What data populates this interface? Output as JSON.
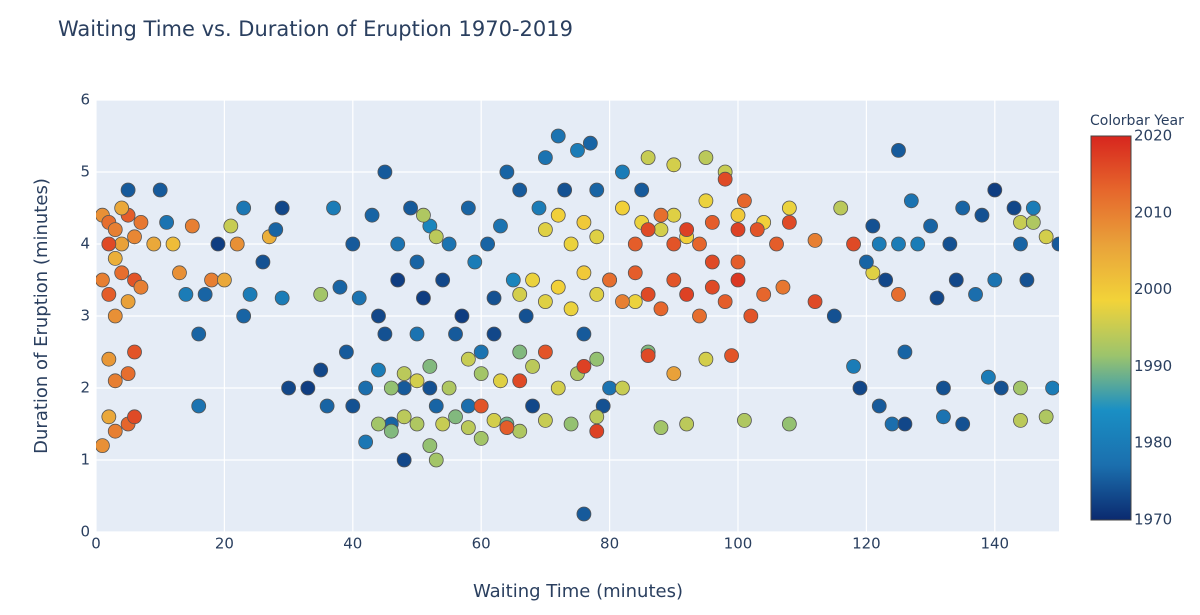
{
  "chart_data": {
    "type": "scatter",
    "title": "Waiting Time vs. Duration of Eruption 1970-2019",
    "x_label": "Waiting Time (minutes)",
    "y_label": "Duration of Eruption (minutes)",
    "colorbar_title": "Colorbar Year",
    "xlim": [
      0,
      150
    ],
    "xticks": [
      0,
      20,
      40,
      60,
      80,
      100,
      120,
      140
    ],
    "ylim": [
      0,
      6
    ],
    "yticks": [
      0,
      1,
      2,
      3,
      4,
      5,
      6
    ],
    "clim": [
      1970,
      2020
    ],
    "cticks": [
      1970,
      1980,
      1990,
      2000,
      2010,
      2020
    ],
    "colorscale": [
      "#0b2a6f",
      "#1b6fae",
      "#1a8fc4",
      "#9cc46c",
      "#f2d339",
      "#e9a33a",
      "#e6672c",
      "#d7261e"
    ],
    "grid": true,
    "points": [
      {
        "x": 1,
        "y": 4.4,
        "year": 2008
      },
      {
        "x": 2,
        "y": 4.3,
        "year": 2012
      },
      {
        "x": 3,
        "y": 4.2,
        "year": 2010
      },
      {
        "x": 4,
        "y": 4.0,
        "year": 2006
      },
      {
        "x": 5,
        "y": 4.4,
        "year": 2014
      },
      {
        "x": 6,
        "y": 4.1,
        "year": 2009
      },
      {
        "x": 7,
        "y": 4.3,
        "year": 2011
      },
      {
        "x": 2,
        "y": 4.0,
        "year": 2016
      },
      {
        "x": 4,
        "y": 4.5,
        "year": 2005
      },
      {
        "x": 1,
        "y": 3.5,
        "year": 2010
      },
      {
        "x": 2,
        "y": 3.3,
        "year": 2014
      },
      {
        "x": 3,
        "y": 3.0,
        "year": 2008
      },
      {
        "x": 4,
        "y": 3.6,
        "year": 2012
      },
      {
        "x": 5,
        "y": 3.2,
        "year": 2006
      },
      {
        "x": 6,
        "y": 3.5,
        "year": 2015
      },
      {
        "x": 7,
        "y": 3.4,
        "year": 2010
      },
      {
        "x": 3,
        "y": 3.8,
        "year": 2004
      },
      {
        "x": 2,
        "y": 2.4,
        "year": 2007
      },
      {
        "x": 3,
        "y": 2.1,
        "year": 2010
      },
      {
        "x": 5,
        "y": 2.2,
        "year": 2012
      },
      {
        "x": 6,
        "y": 2.5,
        "year": 2015
      },
      {
        "x": 2,
        "y": 1.6,
        "year": 2005
      },
      {
        "x": 3,
        "y": 1.4,
        "year": 2010
      },
      {
        "x": 5,
        "y": 1.5,
        "year": 2013
      },
      {
        "x": 6,
        "y": 1.6,
        "year": 2016
      },
      {
        "x": 1,
        "y": 1.2,
        "year": 2008
      },
      {
        "x": 5,
        "y": 4.75,
        "year": 1975
      },
      {
        "x": 10,
        "y": 4.75,
        "year": 1975
      },
      {
        "x": 9,
        "y": 4.0,
        "year": 2005
      },
      {
        "x": 11,
        "y": 4.3,
        "year": 1978
      },
      {
        "x": 12,
        "y": 4.0,
        "year": 2002
      },
      {
        "x": 13,
        "y": 3.6,
        "year": 2008
      },
      {
        "x": 14,
        "y": 3.3,
        "year": 1980
      },
      {
        "x": 15,
        "y": 4.25,
        "year": 2010
      },
      {
        "x": 16,
        "y": 2.75,
        "year": 1976
      },
      {
        "x": 16,
        "y": 1.75,
        "year": 1978
      },
      {
        "x": 17,
        "y": 3.3,
        "year": 1976
      },
      {
        "x": 18,
        "y": 3.5,
        "year": 2010
      },
      {
        "x": 19,
        "y": 4.0,
        "year": 1972
      },
      {
        "x": 20,
        "y": 3.5,
        "year": 2005
      },
      {
        "x": 21,
        "y": 4.25,
        "year": 1995
      },
      {
        "x": 22,
        "y": 4.0,
        "year": 2008
      },
      {
        "x": 23,
        "y": 4.5,
        "year": 1979
      },
      {
        "x": 23,
        "y": 3.0,
        "year": 1976
      },
      {
        "x": 24,
        "y": 3.3,
        "year": 1980
      },
      {
        "x": 26,
        "y": 3.75,
        "year": 1974
      },
      {
        "x": 27,
        "y": 4.1,
        "year": 2004
      },
      {
        "x": 28,
        "y": 4.2,
        "year": 1976
      },
      {
        "x": 29,
        "y": 4.5,
        "year": 1973
      },
      {
        "x": 29,
        "y": 3.25,
        "year": 1980
      },
      {
        "x": 30,
        "y": 2.0,
        "year": 1973
      },
      {
        "x": 33,
        "y": 2.0,
        "year": 1972
      },
      {
        "x": 35,
        "y": 2.25,
        "year": 1973
      },
      {
        "x": 36,
        "y": 1.75,
        "year": 1976
      },
      {
        "x": 37,
        "y": 4.5,
        "year": 1980
      },
      {
        "x": 38,
        "y": 3.4,
        "year": 1976
      },
      {
        "x": 39,
        "y": 2.5,
        "year": 1975
      },
      {
        "x": 40,
        "y": 4.0,
        "year": 1975
      },
      {
        "x": 40,
        "y": 1.75,
        "year": 1974
      },
      {
        "x": 41,
        "y": 3.25,
        "year": 1978
      },
      {
        "x": 42,
        "y": 2.0,
        "year": 1977
      },
      {
        "x": 42,
        "y": 1.25,
        "year": 1979
      },
      {
        "x": 43,
        "y": 4.4,
        "year": 1976
      },
      {
        "x": 44,
        "y": 3.0,
        "year": 1973
      },
      {
        "x": 44,
        "y": 2.25,
        "year": 1980
      },
      {
        "x": 45,
        "y": 5.0,
        "year": 1975
      },
      {
        "x": 45,
        "y": 2.75,
        "year": 1974
      },
      {
        "x": 46,
        "y": 1.5,
        "year": 1976
      },
      {
        "x": 47,
        "y": 3.5,
        "year": 1972
      },
      {
        "x": 47,
        "y": 4.0,
        "year": 1978
      },
      {
        "x": 48,
        "y": 2.0,
        "year": 1975
      },
      {
        "x": 48,
        "y": 1.0,
        "year": 1973
      },
      {
        "x": 49,
        "y": 4.5,
        "year": 1975
      },
      {
        "x": 50,
        "y": 3.75,
        "year": 1976
      },
      {
        "x": 50,
        "y": 2.75,
        "year": 1978
      },
      {
        "x": 51,
        "y": 3.25,
        "year": 1972
      },
      {
        "x": 52,
        "y": 4.25,
        "year": 1982
      },
      {
        "x": 52,
        "y": 2.0,
        "year": 1974
      },
      {
        "x": 53,
        "y": 1.75,
        "year": 1976
      },
      {
        "x": 54,
        "y": 3.5,
        "year": 1973
      },
      {
        "x": 55,
        "y": 4.0,
        "year": 1978
      },
      {
        "x": 56,
        "y": 2.75,
        "year": 1975
      },
      {
        "x": 57,
        "y": 3.0,
        "year": 1972
      },
      {
        "x": 58,
        "y": 4.5,
        "year": 1976
      },
      {
        "x": 58,
        "y": 1.75,
        "year": 1977
      },
      {
        "x": 59,
        "y": 3.75,
        "year": 1980
      },
      {
        "x": 60,
        "y": 2.5,
        "year": 1978
      },
      {
        "x": 61,
        "y": 4.0,
        "year": 1976
      },
      {
        "x": 62,
        "y": 3.25,
        "year": 1974
      },
      {
        "x": 62,
        "y": 2.75,
        "year": 1973
      },
      {
        "x": 63,
        "y": 4.25,
        "year": 1978
      },
      {
        "x": 64,
        "y": 5.0,
        "year": 1976
      },
      {
        "x": 65,
        "y": 3.5,
        "year": 1982
      },
      {
        "x": 66,
        "y": 4.75,
        "year": 1975
      },
      {
        "x": 67,
        "y": 3.0,
        "year": 1974
      },
      {
        "x": 68,
        "y": 1.75,
        "year": 1973
      },
      {
        "x": 69,
        "y": 4.5,
        "year": 1980
      },
      {
        "x": 70,
        "y": 5.2,
        "year": 1978
      },
      {
        "x": 72,
        "y": 5.5,
        "year": 1978
      },
      {
        "x": 73,
        "y": 4.75,
        "year": 1974
      },
      {
        "x": 75,
        "y": 5.3,
        "year": 1980
      },
      {
        "x": 76,
        "y": 2.75,
        "year": 1975
      },
      {
        "x": 77,
        "y": 5.4,
        "year": 1976
      },
      {
        "x": 78,
        "y": 4.75,
        "year": 1976
      },
      {
        "x": 80,
        "y": 2.0,
        "year": 1978
      },
      {
        "x": 79,
        "y": 1.75,
        "year": 1974
      },
      {
        "x": 76,
        "y": 0.25,
        "year": 1975
      },
      {
        "x": 82,
        "y": 5.0,
        "year": 1980
      },
      {
        "x": 85,
        "y": 4.75,
        "year": 1975
      },
      {
        "x": 44,
        "y": 1.5,
        "year": 1992
      },
      {
        "x": 46,
        "y": 1.4,
        "year": 1990
      },
      {
        "x": 48,
        "y": 1.6,
        "year": 1994
      },
      {
        "x": 50,
        "y": 1.5,
        "year": 1993
      },
      {
        "x": 52,
        "y": 1.2,
        "year": 1991
      },
      {
        "x": 53,
        "y": 1.0,
        "year": 1992
      },
      {
        "x": 54,
        "y": 1.5,
        "year": 1995
      },
      {
        "x": 56,
        "y": 1.6,
        "year": 1990
      },
      {
        "x": 58,
        "y": 1.45,
        "year": 1994
      },
      {
        "x": 60,
        "y": 1.3,
        "year": 1992
      },
      {
        "x": 62,
        "y": 1.55,
        "year": 1996
      },
      {
        "x": 64,
        "y": 1.5,
        "year": 1989
      },
      {
        "x": 66,
        "y": 1.4,
        "year": 1993
      },
      {
        "x": 70,
        "y": 1.55,
        "year": 1995
      },
      {
        "x": 74,
        "y": 1.5,
        "year": 1991
      },
      {
        "x": 78,
        "y": 1.6,
        "year": 1994
      },
      {
        "x": 46,
        "y": 2.0,
        "year": 1991
      },
      {
        "x": 48,
        "y": 2.2,
        "year": 1994
      },
      {
        "x": 50,
        "y": 2.1,
        "year": 1996
      },
      {
        "x": 52,
        "y": 2.3,
        "year": 1990
      },
      {
        "x": 55,
        "y": 2.0,
        "year": 1993
      },
      {
        "x": 58,
        "y": 2.4,
        "year": 1995
      },
      {
        "x": 60,
        "y": 2.2,
        "year": 1992
      },
      {
        "x": 63,
        "y": 2.1,
        "year": 1997
      },
      {
        "x": 66,
        "y": 2.5,
        "year": 1990
      },
      {
        "x": 68,
        "y": 2.3,
        "year": 1994
      },
      {
        "x": 72,
        "y": 2.0,
        "year": 1996
      },
      {
        "x": 75,
        "y": 2.2,
        "year": 1993
      },
      {
        "x": 78,
        "y": 2.4,
        "year": 1991
      },
      {
        "x": 82,
        "y": 2.0,
        "year": 1995
      },
      {
        "x": 86,
        "y": 2.5,
        "year": 1990
      },
      {
        "x": 88,
        "y": 1.45,
        "year": 1992
      },
      {
        "x": 92,
        "y": 1.5,
        "year": 1994
      },
      {
        "x": 95,
        "y": 2.4,
        "year": 1996
      },
      {
        "x": 101,
        "y": 1.55,
        "year": 1993
      },
      {
        "x": 108,
        "y": 1.5,
        "year": 1991
      },
      {
        "x": 35,
        "y": 3.3,
        "year": 1992
      },
      {
        "x": 51,
        "y": 4.4,
        "year": 1993
      },
      {
        "x": 53,
        "y": 4.1,
        "year": 1994
      },
      {
        "x": 66,
        "y": 3.3,
        "year": 1996
      },
      {
        "x": 68,
        "y": 3.5,
        "year": 1998
      },
      {
        "x": 70,
        "y": 3.2,
        "year": 1997
      },
      {
        "x": 72,
        "y": 3.4,
        "year": 1999
      },
      {
        "x": 74,
        "y": 3.1,
        "year": 1998
      },
      {
        "x": 76,
        "y": 3.6,
        "year": 2000
      },
      {
        "x": 78,
        "y": 3.3,
        "year": 1997
      },
      {
        "x": 80,
        "y": 3.5,
        "year": 1999
      },
      {
        "x": 84,
        "y": 3.2,
        "year": 1998
      },
      {
        "x": 70,
        "y": 4.2,
        "year": 1997
      },
      {
        "x": 72,
        "y": 4.4,
        "year": 1999
      },
      {
        "x": 74,
        "y": 4.0,
        "year": 1998
      },
      {
        "x": 76,
        "y": 4.3,
        "year": 2000
      },
      {
        "x": 78,
        "y": 4.1,
        "year": 1997
      },
      {
        "x": 82,
        "y": 4.5,
        "year": 1999
      },
      {
        "x": 85,
        "y": 4.3,
        "year": 1998
      },
      {
        "x": 88,
        "y": 4.2,
        "year": 1996
      },
      {
        "x": 90,
        "y": 4.4,
        "year": 1997
      },
      {
        "x": 92,
        "y": 4.1,
        "year": 1999
      },
      {
        "x": 95,
        "y": 4.6,
        "year": 1998
      },
      {
        "x": 86,
        "y": 5.2,
        "year": 1995
      },
      {
        "x": 90,
        "y": 5.1,
        "year": 1996
      },
      {
        "x": 95,
        "y": 5.2,
        "year": 1994
      },
      {
        "x": 98,
        "y": 5.0,
        "year": 1995
      },
      {
        "x": 100,
        "y": 4.4,
        "year": 2000
      },
      {
        "x": 104,
        "y": 4.3,
        "year": 1999
      },
      {
        "x": 108,
        "y": 4.5,
        "year": 1998
      },
      {
        "x": 116,
        "y": 4.5,
        "year": 1994
      },
      {
        "x": 121,
        "y": 3.6,
        "year": 1997
      },
      {
        "x": 144,
        "y": 4.3,
        "year": 1995
      },
      {
        "x": 146,
        "y": 4.3,
        "year": 1993
      },
      {
        "x": 148,
        "y": 4.1,
        "year": 1996
      },
      {
        "x": 144,
        "y": 2.0,
        "year": 1992
      },
      {
        "x": 148,
        "y": 1.6,
        "year": 1993
      },
      {
        "x": 144,
        "y": 1.55,
        "year": 1994
      },
      {
        "x": 80,
        "y": 3.5,
        "year": 2012
      },
      {
        "x": 82,
        "y": 3.2,
        "year": 2010
      },
      {
        "x": 84,
        "y": 3.6,
        "year": 2014
      },
      {
        "x": 86,
        "y": 3.3,
        "year": 2016
      },
      {
        "x": 88,
        "y": 3.1,
        "year": 2013
      },
      {
        "x": 90,
        "y": 3.5,
        "year": 2015
      },
      {
        "x": 92,
        "y": 3.3,
        "year": 2017
      },
      {
        "x": 94,
        "y": 3.0,
        "year": 2012
      },
      {
        "x": 96,
        "y": 3.4,
        "year": 2016
      },
      {
        "x": 98,
        "y": 3.2,
        "year": 2014
      },
      {
        "x": 100,
        "y": 3.5,
        "year": 2018
      },
      {
        "x": 102,
        "y": 3.0,
        "year": 2015
      },
      {
        "x": 104,
        "y": 3.3,
        "year": 2013
      },
      {
        "x": 107,
        "y": 3.4,
        "year": 2011
      },
      {
        "x": 112,
        "y": 3.2,
        "year": 2016
      },
      {
        "x": 84,
        "y": 4.0,
        "year": 2014
      },
      {
        "x": 86,
        "y": 4.2,
        "year": 2016
      },
      {
        "x": 88,
        "y": 4.4,
        "year": 2012
      },
      {
        "x": 90,
        "y": 4.0,
        "year": 2015
      },
      {
        "x": 92,
        "y": 4.2,
        "year": 2017
      },
      {
        "x": 94,
        "y": 4.0,
        "year": 2013
      },
      {
        "x": 96,
        "y": 4.3,
        "year": 2014
      },
      {
        "x": 98,
        "y": 4.9,
        "year": 2016
      },
      {
        "x": 100,
        "y": 4.2,
        "year": 2017
      },
      {
        "x": 101,
        "y": 4.6,
        "year": 2013
      },
      {
        "x": 103,
        "y": 4.2,
        "year": 2015
      },
      {
        "x": 106,
        "y": 4.0,
        "year": 2014
      },
      {
        "x": 108,
        "y": 4.3,
        "year": 2016
      },
      {
        "x": 112,
        "y": 4.05,
        "year": 2010
      },
      {
        "x": 118,
        "y": 4.0,
        "year": 2016
      },
      {
        "x": 99,
        "y": 2.45,
        "year": 2015
      },
      {
        "x": 90,
        "y": 2.2,
        "year": 2006
      },
      {
        "x": 70,
        "y": 2.5,
        "year": 2015
      },
      {
        "x": 66,
        "y": 2.1,
        "year": 2016
      },
      {
        "x": 60,
        "y": 1.75,
        "year": 2015
      },
      {
        "x": 64,
        "y": 1.45,
        "year": 2014
      },
      {
        "x": 76,
        "y": 2.3,
        "year": 2017
      },
      {
        "x": 86,
        "y": 2.45,
        "year": 2016
      },
      {
        "x": 125,
        "y": 3.3,
        "year": 2012
      },
      {
        "x": 78,
        "y": 1.4,
        "year": 2017
      },
      {
        "x": 100,
        "y": 3.75,
        "year": 2014
      },
      {
        "x": 96,
        "y": 3.75,
        "year": 2016
      },
      {
        "x": 115,
        "y": 3.0,
        "year": 1974
      },
      {
        "x": 118,
        "y": 2.3,
        "year": 1980
      },
      {
        "x": 119,
        "y": 2.0,
        "year": 1973
      },
      {
        "x": 120,
        "y": 3.75,
        "year": 1976
      },
      {
        "x": 121,
        "y": 4.25,
        "year": 1974
      },
      {
        "x": 122,
        "y": 4.0,
        "year": 1980
      },
      {
        "x": 122,
        "y": 1.75,
        "year": 1975
      },
      {
        "x": 123,
        "y": 3.5,
        "year": 1973
      },
      {
        "x": 124,
        "y": 1.5,
        "year": 1977
      },
      {
        "x": 125,
        "y": 5.3,
        "year": 1975
      },
      {
        "x": 125,
        "y": 4.0,
        "year": 1980
      },
      {
        "x": 126,
        "y": 2.5,
        "year": 1976
      },
      {
        "x": 126,
        "y": 1.5,
        "year": 1973
      },
      {
        "x": 127,
        "y": 4.6,
        "year": 1978
      },
      {
        "x": 128,
        "y": 4.0,
        "year": 1980
      },
      {
        "x": 130,
        "y": 4.25,
        "year": 1976
      },
      {
        "x": 131,
        "y": 3.25,
        "year": 1973
      },
      {
        "x": 132,
        "y": 2.0,
        "year": 1974
      },
      {
        "x": 132,
        "y": 1.6,
        "year": 1978
      },
      {
        "x": 133,
        "y": 4.0,
        "year": 1974
      },
      {
        "x": 134,
        "y": 3.5,
        "year": 1973
      },
      {
        "x": 135,
        "y": 4.5,
        "year": 1976
      },
      {
        "x": 135,
        "y": 1.5,
        "year": 1974
      },
      {
        "x": 137,
        "y": 3.3,
        "year": 1977
      },
      {
        "x": 138,
        "y": 4.4,
        "year": 1974
      },
      {
        "x": 139,
        "y": 2.15,
        "year": 1980
      },
      {
        "x": 140,
        "y": 4.75,
        "year": 1972
      },
      {
        "x": 140,
        "y": 3.5,
        "year": 1978
      },
      {
        "x": 141,
        "y": 2.0,
        "year": 1974
      },
      {
        "x": 143,
        "y": 4.5,
        "year": 1973
      },
      {
        "x": 144,
        "y": 4.0,
        "year": 1976
      },
      {
        "x": 145,
        "y": 3.5,
        "year": 1974
      },
      {
        "x": 146,
        "y": 4.5,
        "year": 1980
      },
      {
        "x": 149,
        "y": 2.0,
        "year": 1980
      },
      {
        "x": 150,
        "y": 4.0,
        "year": 1975
      }
    ]
  }
}
